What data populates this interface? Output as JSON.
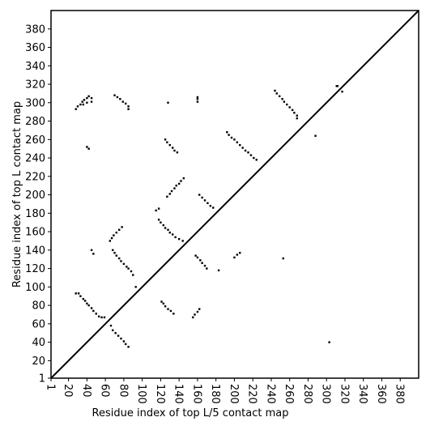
{
  "chart_data": {
    "type": "scatter",
    "xlabel": "Residue index of top L/5 contact map",
    "ylabel": "Residue index of top L contact map",
    "xlim": [
      1,
      400
    ],
    "ylim": [
      1,
      400
    ],
    "xticks": [
      1,
      20,
      40,
      60,
      80,
      100,
      120,
      140,
      160,
      180,
      200,
      220,
      240,
      260,
      280,
      300,
      320,
      340,
      360,
      380
    ],
    "yticks": [
      1,
      20,
      40,
      60,
      80,
      100,
      120,
      140,
      160,
      180,
      200,
      220,
      240,
      260,
      280,
      300,
      320,
      340,
      360,
      380
    ],
    "color": "#000000",
    "x": [
      28,
      30,
      33,
      35,
      37,
      40,
      42,
      45,
      45,
      40,
      36,
      40,
      42,
      70,
      73,
      76,
      79,
      82,
      85,
      85,
      128,
      160,
      160,
      160,
      125,
      127,
      130,
      133,
      135,
      138,
      127,
      130,
      132,
      135,
      137,
      140,
      142,
      145,
      118,
      115,
      65,
      67,
      69,
      72,
      75,
      78,
      45,
      47,
      192,
      194,
      197,
      200,
      203,
      206,
      209,
      212,
      215,
      218,
      221,
      224,
      244,
      246,
      249,
      252,
      254,
      257,
      260,
      263,
      265,
      268,
      268,
      162,
      165,
      168,
      171,
      174,
      177,
      288,
      311,
      312,
      317,
      28,
      31,
      33,
      36,
      38,
      40,
      42,
      45,
      47,
      50,
      53,
      56,
      59,
      66,
      68,
      71,
      74,
      77,
      80,
      82,
      85,
      68,
      70,
      72,
      75,
      77,
      80,
      83,
      85,
      88,
      90,
      93,
      118,
      120,
      123,
      125,
      128,
      130,
      133,
      136,
      140,
      144,
      121,
      123,
      125,
      128,
      131,
      134,
      155,
      157,
      160,
      162,
      158,
      160,
      163,
      165,
      168,
      170,
      183,
      200,
      203,
      206,
      253,
      303
    ],
    "values": [
      293,
      296,
      298,
      301,
      303,
      305,
      307,
      305,
      301,
      300,
      298,
      252,
      250,
      308,
      306,
      304,
      301,
      299,
      296,
      293,
      300,
      301,
      304,
      306,
      260,
      257,
      254,
      251,
      248,
      246,
      198,
      201,
      204,
      207,
      210,
      212,
      215,
      218,
      185,
      183,
      150,
      153,
      156,
      159,
      162,
      165,
      140,
      136,
      268,
      265,
      262,
      260,
      257,
      254,
      251,
      248,
      246,
      243,
      240,
      238,
      313,
      310,
      307,
      304,
      301,
      298,
      295,
      292,
      289,
      286,
      283,
      200,
      197,
      194,
      191,
      188,
      186,
      264,
      318,
      318,
      312,
      93,
      93,
      90,
      87,
      85,
      82,
      80,
      77,
      74,
      71,
      68,
      67,
      67,
      58,
      53,
      50,
      47,
      44,
      41,
      38,
      35,
      140,
      137,
      134,
      131,
      128,
      125,
      122,
      120,
      117,
      113,
      100,
      173,
      170,
      167,
      164,
      162,
      159,
      157,
      154,
      152,
      150,
      84,
      82,
      79,
      76,
      74,
      71,
      67,
      70,
      73,
      76,
      134,
      132,
      129,
      126,
      123,
      120,
      118,
      132,
      135,
      137,
      131,
      40
    ]
  }
}
